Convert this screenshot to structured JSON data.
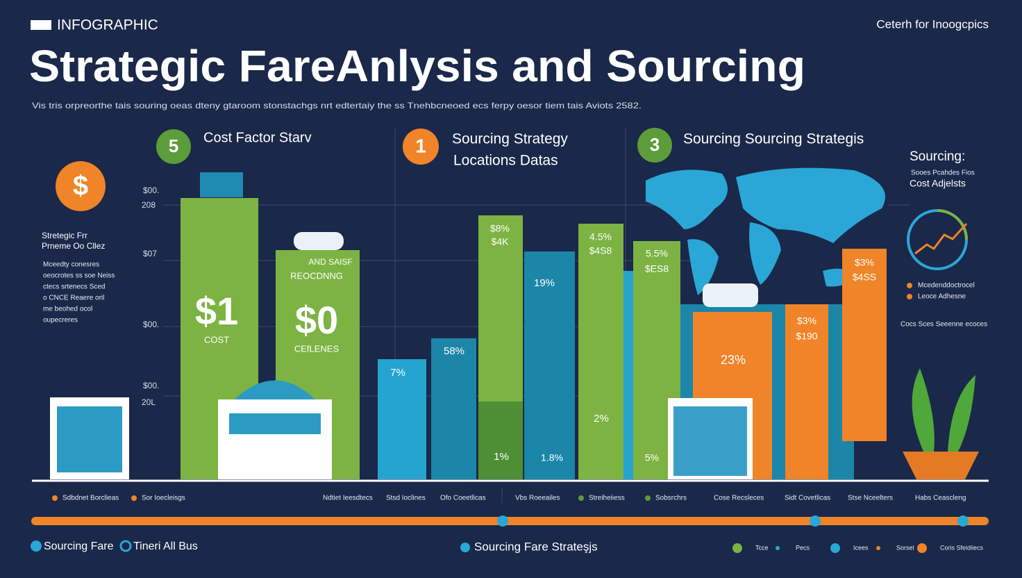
{
  "header": {
    "brand": "INFOGRAPHIC",
    "right": "Ceterh for Inoogcpics",
    "title": "Strategic FareAnlysis and Sourcing",
    "subtitle": "Vis tris orpreorthe tais souring oeas dteny gtaroom stonstachgs nrt edtertaiy the ss Tnehbcneoed ecs ferpy oesor tiem tais Aviots 2582."
  },
  "sections": [
    {
      "badge": "5",
      "title": "Cost Factor Starv"
    },
    {
      "badge": "1",
      "title": "Sourcing Strategy",
      "subtitle": "Locations Datas"
    },
    {
      "badge": "3",
      "title": "Sourcing Sourcing Strategis"
    }
  ],
  "left_panel": {
    "icon": "$",
    "heading": [
      "Stretegic Frr",
      "Prneme Oo Cllez"
    ],
    "lines": [
      "Mceedty conesres",
      "oeocrotes ss soe Neiss",
      "ctecs srtenecs Sced",
      "o CNCE Reaere oril",
      "me beohed ocol",
      "oupecreres"
    ]
  },
  "axis_labels": [
    "$00.",
    "208",
    "$07",
    "$00.",
    "$00.",
    "20L"
  ],
  "bar_labels": [
    "$1",
    "COST",
    "$0",
    "CEfLENES",
    "AND SAISF",
    "REOCDNNG",
    "7%",
    "58%",
    "$8%",
    "$4K",
    "19%",
    "4.5%",
    "$4S8",
    "5.5%",
    "$ES8",
    "23%",
    "$3%",
    "$190",
    "$3%",
    "$4SS",
    "1%",
    "1.8%",
    "2%",
    "5%"
  ],
  "right_panel": {
    "heading": "Sourcing:",
    "sub": "Sooes Pcahdes Fios",
    "title": "Cost Adjelsts",
    "legend": [
      "Mcedenddoctrocel",
      "Leoce Adhesne",
      "Cocs Sces Seeenne ecoces"
    ]
  },
  "legend_row": [
    "Sdbdnet Borclieas",
    "Sor Ioecleisgs",
    "Ndtiet Ieesdtecs",
    "Stsd Ioclines",
    "Ofo Coeetlicas",
    "Vbs Roeeailes",
    "Streiheiiess",
    "Sobsrchrs",
    "Cose Recsleces",
    "Sidt Covetlicas",
    "Stse Nceelters",
    "Habs Ceascleng"
  ],
  "footer": {
    "left": [
      "Sourcing Fare",
      "Tineri All Bus"
    ],
    "center": "Sourcing Fare Strateşjs",
    "legend": [
      "Tcce",
      "Pecs",
      "Icees",
      "Sorsel",
      "Coris Sfeidiiecs"
    ]
  }
}
